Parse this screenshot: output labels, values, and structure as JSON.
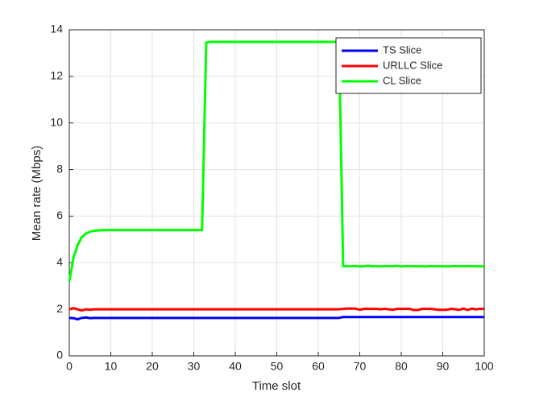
{
  "chart_data": {
    "type": "line",
    "xlabel": "Time slot",
    "ylabel": "Mean rate (Mbps)",
    "x": [
      0,
      1,
      2,
      3,
      4,
      5,
      6,
      7,
      8,
      9,
      10,
      11,
      12,
      13,
      14,
      15,
      16,
      17,
      18,
      19,
      20,
      21,
      22,
      23,
      24,
      25,
      26,
      27,
      28,
      29,
      30,
      31,
      32,
      33,
      34,
      35,
      36,
      37,
      38,
      39,
      40,
      41,
      42,
      43,
      44,
      45,
      46,
      47,
      48,
      49,
      50,
      51,
      52,
      53,
      54,
      55,
      56,
      57,
      58,
      59,
      60,
      61,
      62,
      63,
      64,
      65,
      66,
      67,
      68,
      69,
      70,
      71,
      72,
      73,
      74,
      75,
      76,
      77,
      78,
      79,
      80,
      81,
      82,
      83,
      84,
      85,
      86,
      87,
      88,
      89,
      90,
      91,
      92,
      93,
      94,
      95,
      96,
      97,
      98,
      99,
      100
    ],
    "series": [
      {
        "name": "TS Slice",
        "color": "#0000ff",
        "values": [
          1.63,
          1.62,
          1.57,
          1.63,
          1.65,
          1.62,
          1.63,
          1.63,
          1.63,
          1.63,
          1.63,
          1.63,
          1.63,
          1.63,
          1.63,
          1.63,
          1.63,
          1.63,
          1.63,
          1.63,
          1.63,
          1.63,
          1.63,
          1.63,
          1.63,
          1.63,
          1.63,
          1.63,
          1.63,
          1.63,
          1.63,
          1.63,
          1.63,
          1.63,
          1.63,
          1.63,
          1.63,
          1.63,
          1.63,
          1.63,
          1.63,
          1.63,
          1.63,
          1.63,
          1.63,
          1.63,
          1.63,
          1.63,
          1.63,
          1.63,
          1.63,
          1.63,
          1.63,
          1.63,
          1.63,
          1.63,
          1.63,
          1.63,
          1.63,
          1.63,
          1.63,
          1.63,
          1.63,
          1.63,
          1.63,
          1.63,
          1.67,
          1.67,
          1.67,
          1.67,
          1.67,
          1.67,
          1.67,
          1.67,
          1.67,
          1.67,
          1.67,
          1.67,
          1.67,
          1.67,
          1.67,
          1.67,
          1.67,
          1.67,
          1.67,
          1.67,
          1.67,
          1.67,
          1.67,
          1.67,
          1.67,
          1.67,
          1.67,
          1.67,
          1.67,
          1.67,
          1.67,
          1.67,
          1.67,
          1.67,
          1.67
        ]
      },
      {
        "name": "URLLC Slice",
        "color": "#ff0000",
        "values": [
          2.0,
          2.05,
          2.0,
          1.95,
          2.0,
          1.98,
          2,
          2,
          2,
          2,
          2,
          2,
          2,
          2,
          2,
          2,
          2,
          2,
          2,
          2,
          2,
          2,
          2,
          2,
          2,
          2,
          2,
          2,
          2,
          2,
          2,
          2,
          2,
          2,
          2,
          2,
          2,
          2,
          2,
          2,
          2,
          2,
          2,
          2,
          2,
          2,
          2,
          2,
          2,
          2,
          2,
          2,
          2,
          2,
          2,
          2,
          2,
          2,
          2,
          2,
          2,
          2,
          2,
          2,
          2,
          2,
          2.02,
          2.03,
          2.03,
          2.03,
          1.98,
          2.02,
          2.02,
          2.02,
          2.02,
          2.0,
          2.02,
          2.0,
          1.98,
          2.02,
          2.02,
          2.02,
          2.02,
          1.97,
          1.97,
          2.02,
          2.02,
          2.02,
          2.0,
          1.98,
          1.98,
          1.98,
          2.02,
          2.0,
          1.98,
          2.03,
          1.97,
          2.03,
          2.0,
          2.02,
          2.02
        ]
      },
      {
        "name": "CL Slice",
        "color": "#00ff00",
        "values": [
          3.2,
          4.2,
          4.75,
          5.1,
          5.25,
          5.33,
          5.37,
          5.39,
          5.4,
          5.4,
          5.4,
          5.4,
          5.4,
          5.4,
          5.4,
          5.4,
          5.4,
          5.4,
          5.4,
          5.4,
          5.4,
          5.4,
          5.4,
          5.4,
          5.4,
          5.4,
          5.4,
          5.4,
          5.4,
          5.4,
          5.4,
          5.4,
          5.4,
          13.45,
          13.48,
          13.48,
          13.48,
          13.48,
          13.48,
          13.48,
          13.48,
          13.48,
          13.48,
          13.48,
          13.48,
          13.48,
          13.48,
          13.48,
          13.48,
          13.48,
          13.48,
          13.48,
          13.48,
          13.48,
          13.48,
          13.48,
          13.48,
          13.48,
          13.48,
          13.48,
          13.48,
          13.48,
          13.48,
          13.48,
          13.48,
          13.48,
          3.85,
          3.85,
          3.85,
          3.86,
          3.84,
          3.85,
          3.87,
          3.85,
          3.85,
          3.84,
          3.86,
          3.85,
          3.85,
          3.87,
          3.84,
          3.85,
          3.86,
          3.85,
          3.85,
          3.85,
          3.84,
          3.86,
          3.85,
          3.85,
          3.85,
          3.84,
          3.85,
          3.86,
          3.85,
          3.85,
          3.86,
          3.85,
          3.85,
          3.84,
          3.85
        ]
      }
    ],
    "xlim": [
      0,
      100
    ],
    "xticks": [
      0,
      10,
      20,
      30,
      40,
      50,
      60,
      70,
      80,
      90,
      100
    ],
    "ylim": [
      0,
      14
    ],
    "yticks": [
      0,
      2,
      4,
      6,
      8,
      10,
      12,
      14
    ],
    "grid": true,
    "legend": "northeast"
  }
}
